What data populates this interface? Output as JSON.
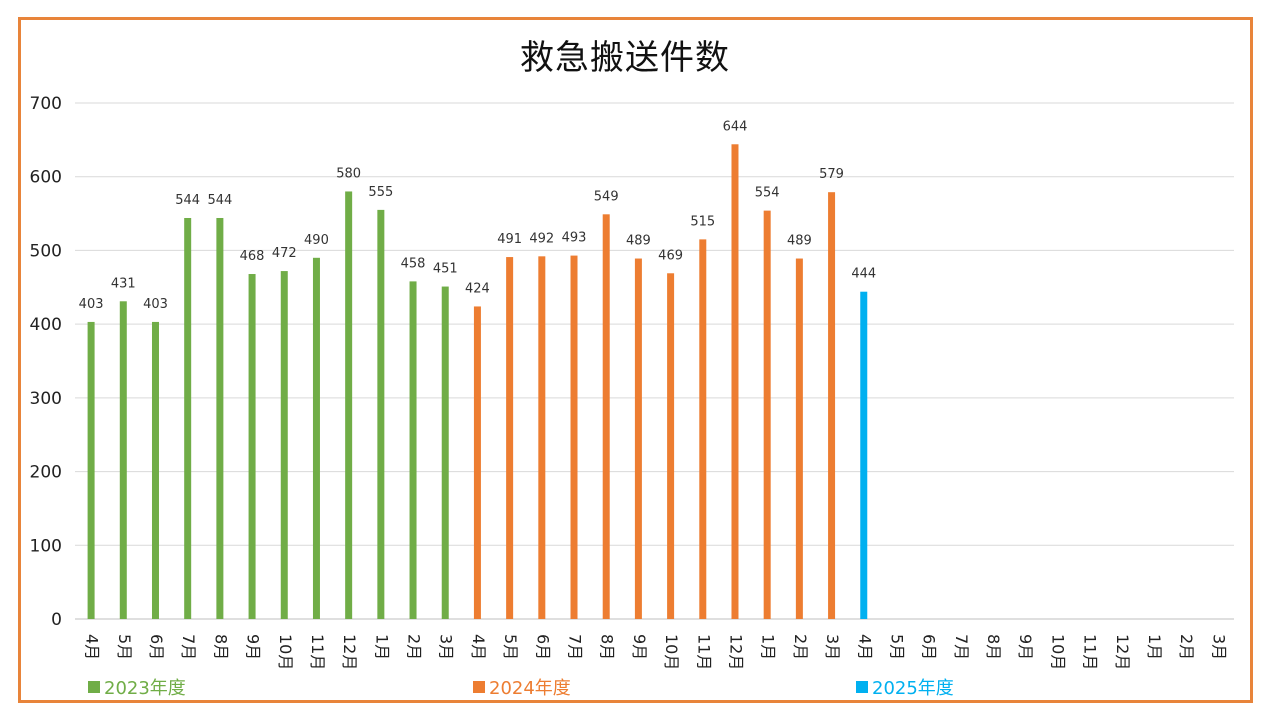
{
  "chart_data": {
    "type": "bar",
    "title": "救急搬送件数",
    "ylim": [
      0,
      700
    ],
    "yticks": [
      0,
      100,
      200,
      300,
      400,
      500,
      600,
      700
    ],
    "grid": true,
    "legend_position": "bottom",
    "categories": [
      "4月",
      "5月",
      "6月",
      "7月",
      "8月",
      "9月",
      "10月",
      "11月",
      "12月",
      "1月",
      "2月",
      "3月",
      "4月",
      "5月",
      "6月",
      "7月",
      "8月",
      "9月",
      "10月",
      "11月",
      "12月",
      "1月",
      "2月",
      "3月",
      "4月",
      "5月",
      "6月",
      "7月",
      "8月",
      "9月",
      "10月",
      "11月",
      "12月",
      "1月",
      "2月",
      "3月"
    ],
    "series": [
      {
        "name": "2023年度",
        "color": "#70ad47",
        "values": [
          403,
          431,
          403,
          544,
          544,
          468,
          472,
          490,
          580,
          555,
          458,
          451,
          null,
          null,
          null,
          null,
          null,
          null,
          null,
          null,
          null,
          null,
          null,
          null,
          null,
          null,
          null,
          null,
          null,
          null,
          null,
          null,
          null,
          null,
          null,
          null
        ]
      },
      {
        "name": "2024年度",
        "color": "#ed7d31",
        "values": [
          null,
          null,
          null,
          null,
          null,
          null,
          null,
          null,
          null,
          null,
          null,
          null,
          424,
          491,
          492,
          493,
          549,
          489,
          469,
          515,
          644,
          554,
          489,
          579,
          null,
          null,
          null,
          null,
          null,
          null,
          null,
          null,
          null,
          null,
          null,
          null
        ]
      },
      {
        "name": "2025年度",
        "color": "#00b0f0",
        "values": [
          null,
          null,
          null,
          null,
          null,
          null,
          null,
          null,
          null,
          null,
          null,
          null,
          null,
          null,
          null,
          null,
          null,
          null,
          null,
          null,
          null,
          null,
          null,
          null,
          444,
          null,
          null,
          null,
          null,
          null,
          null,
          null,
          null,
          null,
          null,
          null
        ]
      }
    ]
  }
}
